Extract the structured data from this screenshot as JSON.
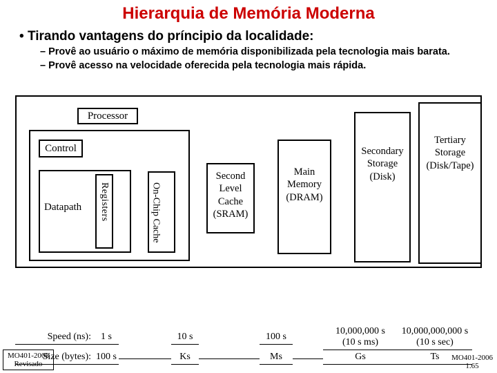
{
  "title": "Hierarquia de Memória Moderna",
  "title_color": "#cc0000",
  "bullets": {
    "main": "Tirando vantagens do príncipio da localidade:",
    "sub1": "Provê ao usuário o máximo de memória disponibilizada pela tecnologia mais barata.",
    "sub2": "Provê acesso na velocidade oferecida pela tecnologia mais rápida."
  },
  "diagram": {
    "processor": "Processor",
    "control": "Control",
    "datapath": "Datapath",
    "registers": "Registers",
    "onchip": "On-Chip\nCache",
    "slc": "Second\nLevel\nCache\n(SRAM)",
    "mainmem": "Main\nMemory\n(DRAM)",
    "secondary": "Secondary\nStorage\n(Disk)",
    "tertiary": "Tertiary\nStorage\n(Disk/Tape)"
  },
  "metrics": {
    "speed_label": "Speed (ns):",
    "size_label": "Size (bytes):",
    "speed": {
      "reg": "1 s",
      "slc": "10 s",
      "main": "100 s",
      "sec": "10,000,000 s\n(10 s ms)",
      "ter": "10,000,000,000 s\n(10 s sec)"
    },
    "size": {
      "reg": "100 s",
      "slc": "Ks",
      "main": "Ms",
      "sec": "Gs",
      "ter": "Ts"
    }
  },
  "footer": {
    "left_a": "MO401-2008",
    "left_b": "Revisado",
    "right_a": "MO401-2006",
    "right_b": "1.65"
  },
  "colors": {
    "border": "#000000",
    "background": "#ffffff"
  },
  "fonts": {
    "title": "Comic Sans MS",
    "body": "Times New Roman",
    "title_size": 24,
    "body_size": 15
  }
}
